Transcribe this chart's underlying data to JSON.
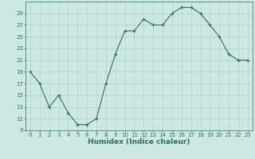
{
  "x": [
    0,
    1,
    2,
    3,
    4,
    5,
    6,
    7,
    8,
    9,
    10,
    11,
    12,
    13,
    14,
    15,
    16,
    17,
    18,
    19,
    20,
    21,
    22,
    23
  ],
  "y": [
    19,
    17,
    13,
    15,
    12,
    10,
    10,
    11,
    17,
    22,
    26,
    26,
    28,
    27,
    27,
    29,
    30,
    30,
    29,
    27,
    25,
    22,
    21,
    21
  ],
  "line_color": "#2e6e5e",
  "marker": "+",
  "marker_color": "#2e6e5e",
  "bg_color": "#cce8e0",
  "grid_color": "#aaccc4",
  "xlabel": "Humidex (Indice chaleur)",
  "ylim": [
    9,
    31
  ],
  "xlim": [
    -0.5,
    23.5
  ],
  "yticks": [
    9,
    11,
    13,
    15,
    17,
    19,
    21,
    23,
    25,
    27,
    29
  ],
  "xticks": [
    0,
    1,
    2,
    3,
    4,
    5,
    6,
    7,
    8,
    9,
    10,
    11,
    12,
    13,
    14,
    15,
    16,
    17,
    18,
    19,
    20,
    21,
    22,
    23
  ],
  "tick_fontsize": 5,
  "xlabel_fontsize": 6.5,
  "line_width": 0.8,
  "marker_size": 2.5,
  "marker_linewidth": 0.8
}
